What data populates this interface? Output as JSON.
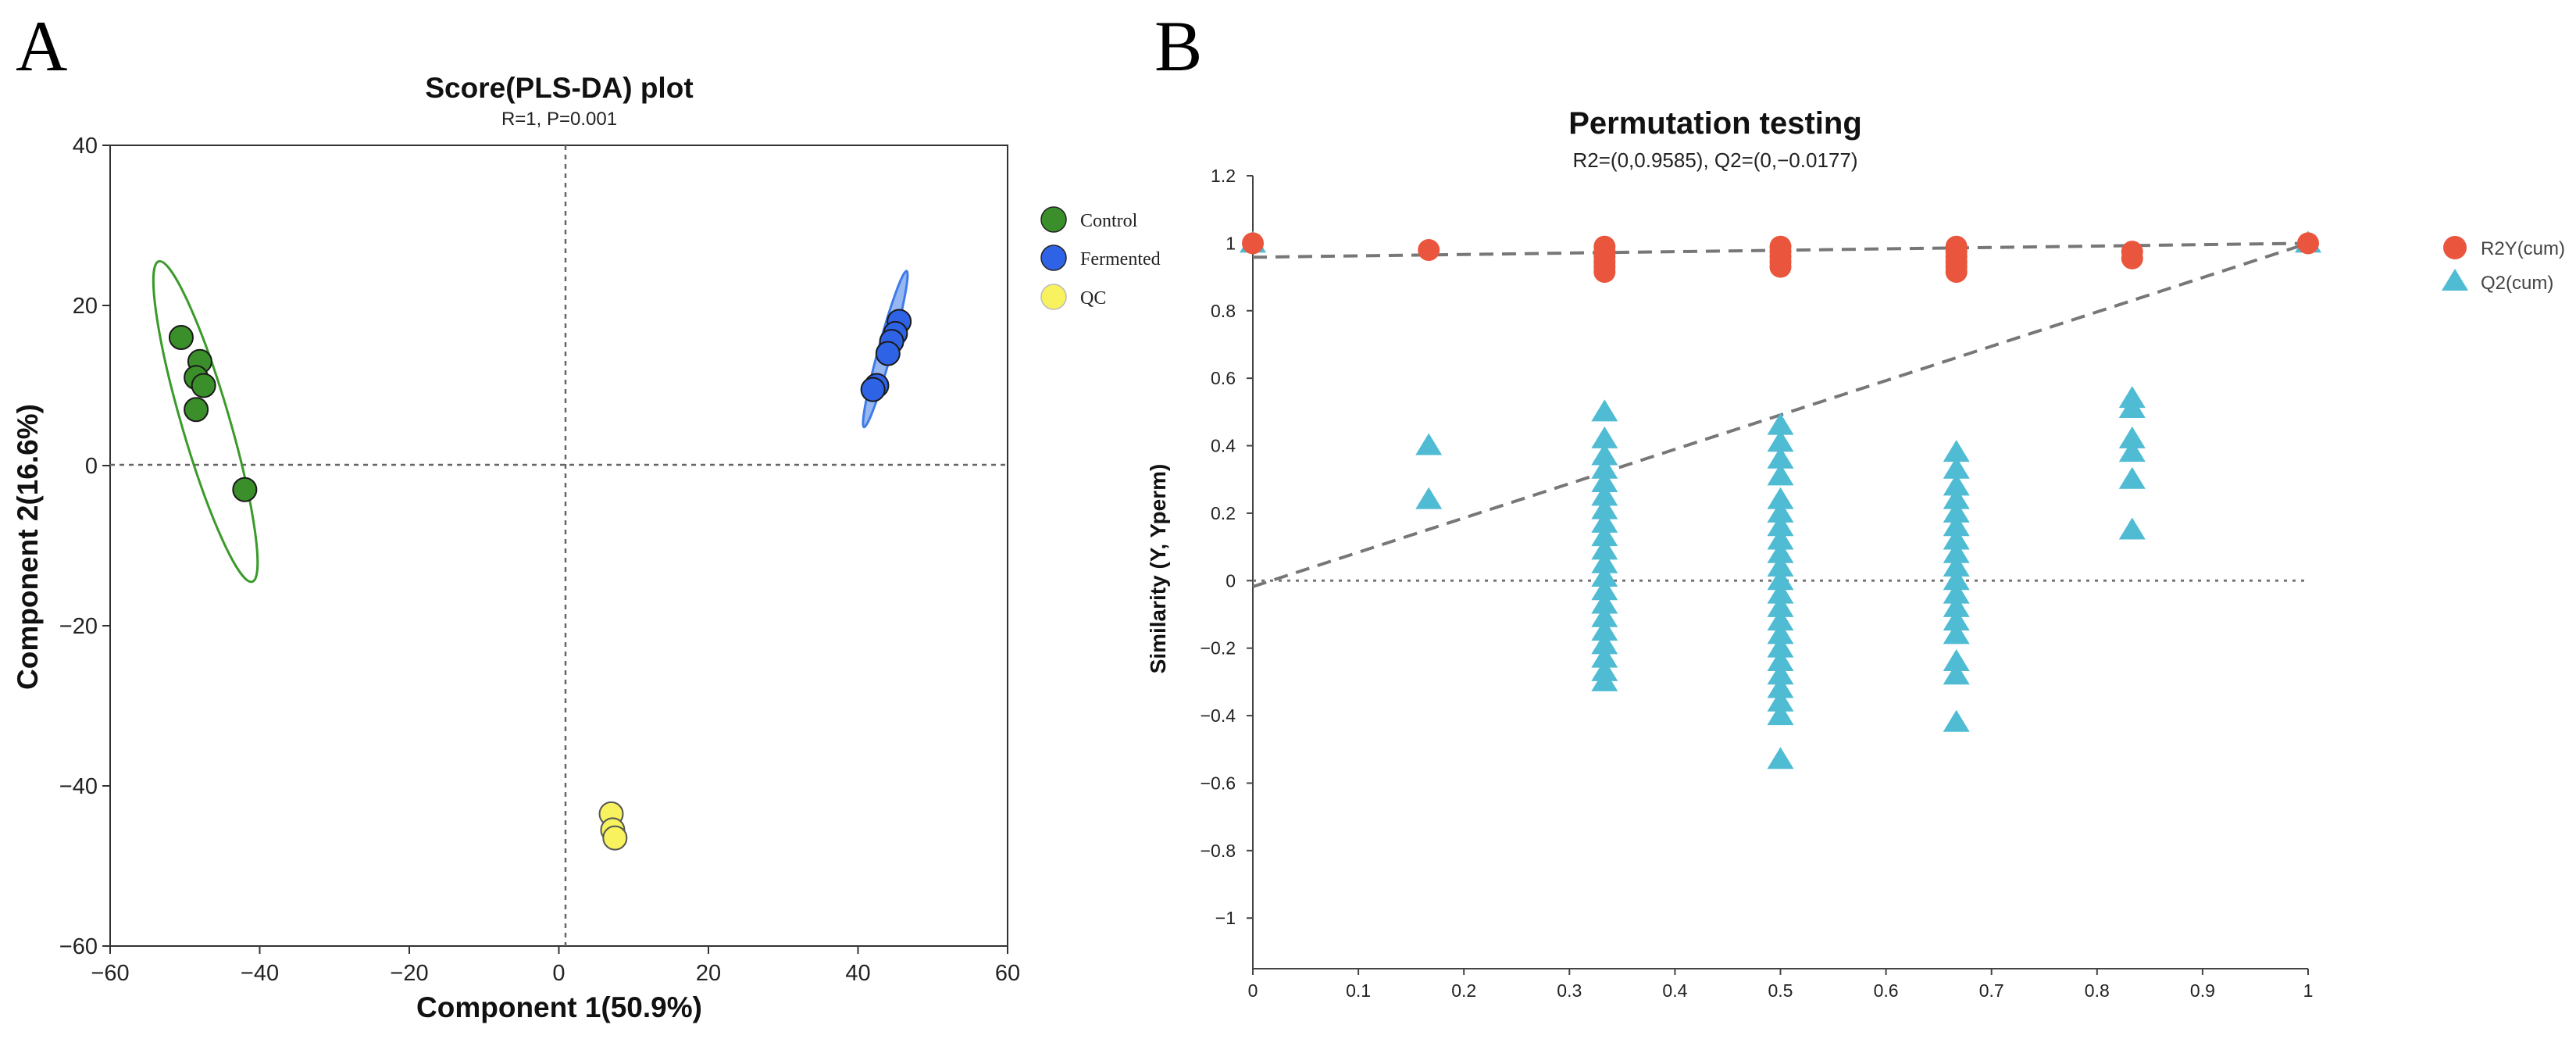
{
  "panel_a_letter": "A",
  "panel_b_letter": "B",
  "colors": {
    "control": "#3a8f2a",
    "fermented": "#2f63e6",
    "qc": "#f7f25e",
    "r2y": "#e9553d",
    "q2": "#4fbcd4",
    "ellipse_control": "#3a9a2a",
    "ellipse_fermented": "#3f7be8"
  },
  "chart_data": [
    {
      "id": "A",
      "type": "scatter",
      "title": "Score(PLS-DA) plot",
      "subtitle": "R=1, P=0.001",
      "xlabel": "Component 1(50.9%)",
      "ylabel": "Component 2(16.6%)",
      "xlim": [
        -60,
        60
      ],
      "ylim": [
        -60,
        40
      ],
      "xticks": [
        -60,
        -40,
        -20,
        0,
        20,
        40,
        60
      ],
      "xtick_labels": [
        "−60",
        "−40",
        "−20",
        "0",
        "20",
        "40",
        "60"
      ],
      "yticks": [
        -60,
        -40,
        -20,
        0,
        20,
        40
      ],
      "ytick_labels": [
        "−60",
        "−40",
        "−20",
        "0",
        "20",
        "40"
      ],
      "series": [
        {
          "name": "Control",
          "color_key": "control",
          "points": [
            [
              -50.5,
              16
            ],
            [
              -48,
              13
            ],
            [
              -48.5,
              11
            ],
            [
              -47.5,
              10
            ],
            [
              -48.5,
              7
            ],
            [
              -42,
              -3
            ]
          ]
        },
        {
          "name": "Fermented",
          "color_key": "fermented",
          "points": [
            [
              45.5,
              18
            ],
            [
              45,
              16.5
            ],
            [
              44.5,
              15.5
            ],
            [
              44,
              14
            ],
            [
              42.5,
              10
            ],
            [
              42,
              9.5
            ]
          ]
        },
        {
          "name": "QC",
          "color_key": "qc",
          "points": [
            [
              7,
              -43.5
            ],
            [
              7.2,
              -45.5
            ],
            [
              7.5,
              -46.5
            ]
          ]
        }
      ],
      "ellipses": [
        {
          "group": "Control",
          "color_key": "ellipse_control",
          "center": [
            -47.3,
            6.4
          ],
          "endpoints": [
            [
              -53.5,
              25.5
            ],
            [
              -41,
              -14.5
            ]
          ],
          "half_width": 3.2
        },
        {
          "group": "Fermented",
          "color_key": "ellipse_fermented",
          "center": [
            43.7,
            14.3
          ],
          "endpoints": [
            [
              40.8,
              4.8
            ],
            [
              46.5,
              24.3
            ]
          ],
          "half_width": 0.9
        }
      ]
    },
    {
      "id": "B",
      "type": "scatter",
      "title": "Permutation testing",
      "subtitle": "R2=(0,0.9585), Q2=(0,−0.0177)",
      "xlabel": "",
      "ylabel": "Similarity (Y, Yperm)",
      "xlim": [
        0,
        1
      ],
      "ylim": [
        -1.15,
        1.2
      ],
      "xticks": [
        0,
        0.1,
        0.2,
        0.3,
        0.4,
        0.5,
        0.6,
        0.7,
        0.8,
        0.9,
        1
      ],
      "xtick_labels": [
        "0",
        "0.1",
        "0.2",
        "0.3",
        "0.4",
        "0.5",
        "0.6",
        "0.7",
        "0.8",
        "0.9",
        "1"
      ],
      "yticks": [
        1.2,
        1,
        0.8,
        0.6,
        0.4,
        0.2,
        0,
        -0.2,
        -0.4,
        -0.6,
        -0.8,
        -1
      ],
      "ytick_labels": [
        "1.2",
        "1",
        "0.8",
        "0.6",
        "0.4",
        "0.2",
        "0",
        "−0.2",
        "−0.4",
        "−0.6",
        "−0.8",
        "−1"
      ],
      "lines": [
        {
          "name": "R2Y regression",
          "from": [
            0,
            0.9585
          ],
          "to": [
            1,
            1.0
          ]
        },
        {
          "name": "Q2 regression",
          "from": [
            0,
            -0.0177
          ],
          "to": [
            1,
            1.0
          ]
        }
      ],
      "series": [
        {
          "name": "R2Y(cum)",
          "color_key": "r2y",
          "marker": "circle",
          "points": [
            [
              0,
              1.0
            ],
            [
              0.1667,
              0.98
            ],
            [
              0.3333,
              0.99
            ],
            [
              0.3333,
              0.975
            ],
            [
              0.3333,
              0.96
            ],
            [
              0.3333,
              0.945
            ],
            [
              0.3333,
              0.93
            ],
            [
              0.3333,
              0.915
            ],
            [
              0.5,
              0.99
            ],
            [
              0.5,
              0.975
            ],
            [
              0.5,
              0.96
            ],
            [
              0.5,
              0.945
            ],
            [
              0.5,
              0.93
            ],
            [
              0.6667,
              0.99
            ],
            [
              0.6667,
              0.975
            ],
            [
              0.6667,
              0.96
            ],
            [
              0.6667,
              0.945
            ],
            [
              0.6667,
              0.93
            ],
            [
              0.6667,
              0.915
            ],
            [
              0.8333,
              0.975
            ],
            [
              0.8333,
              0.955
            ],
            [
              1,
              1.0
            ]
          ]
        },
        {
          "name": "Q2(cum)",
          "color_key": "q2",
          "marker": "triangle",
          "points": [
            [
              0,
              1.0
            ],
            [
              0.1667,
              0.4
            ],
            [
              0.1667,
              0.24
            ],
            [
              0.3333,
              0.5
            ],
            [
              0.3333,
              0.42
            ],
            [
              0.3333,
              0.37
            ],
            [
              0.3333,
              0.33
            ],
            [
              0.3333,
              0.29
            ],
            [
              0.3333,
              0.25
            ],
            [
              0.3333,
              0.21
            ],
            [
              0.3333,
              0.17
            ],
            [
              0.3333,
              0.13
            ],
            [
              0.3333,
              0.09
            ],
            [
              0.3333,
              0.05
            ],
            [
              0.3333,
              0.01
            ],
            [
              0.3333,
              -0.03
            ],
            [
              0.3333,
              -0.07
            ],
            [
              0.3333,
              -0.11
            ],
            [
              0.3333,
              -0.15
            ],
            [
              0.3333,
              -0.19
            ],
            [
              0.3333,
              -0.23
            ],
            [
              0.3333,
              -0.27
            ],
            [
              0.3333,
              -0.3
            ],
            [
              0.5,
              0.46
            ],
            [
              0.5,
              0.41
            ],
            [
              0.5,
              0.36
            ],
            [
              0.5,
              0.31
            ],
            [
              0.5,
              0.24
            ],
            [
              0.5,
              0.2
            ],
            [
              0.5,
              0.16
            ],
            [
              0.5,
              0.12
            ],
            [
              0.5,
              0.08
            ],
            [
              0.5,
              0.04
            ],
            [
              0.5,
              0.0
            ],
            [
              0.5,
              -0.04
            ],
            [
              0.5,
              -0.08
            ],
            [
              0.5,
              -0.12
            ],
            [
              0.5,
              -0.16
            ],
            [
              0.5,
              -0.2
            ],
            [
              0.5,
              -0.24
            ],
            [
              0.5,
              -0.28
            ],
            [
              0.5,
              -0.32
            ],
            [
              0.5,
              -0.36
            ],
            [
              0.5,
              -0.4
            ],
            [
              0.5,
              -0.53
            ],
            [
              0.6667,
              0.38
            ],
            [
              0.6667,
              0.33
            ],
            [
              0.6667,
              0.28
            ],
            [
              0.6667,
              0.24
            ],
            [
              0.6667,
              0.2
            ],
            [
              0.6667,
              0.16
            ],
            [
              0.6667,
              0.12
            ],
            [
              0.6667,
              0.08
            ],
            [
              0.6667,
              0.04
            ],
            [
              0.6667,
              0.0
            ],
            [
              0.6667,
              -0.04
            ],
            [
              0.6667,
              -0.08
            ],
            [
              0.6667,
              -0.12
            ],
            [
              0.6667,
              -0.16
            ],
            [
              0.6667,
              -0.24
            ],
            [
              0.6667,
              -0.28
            ],
            [
              0.6667,
              -0.42
            ],
            [
              0.8333,
              0.54
            ],
            [
              0.8333,
              0.51
            ],
            [
              0.8333,
              0.42
            ],
            [
              0.8333,
              0.38
            ],
            [
              0.8333,
              0.3
            ],
            [
              0.8333,
              0.15
            ],
            [
              1,
              1.0
            ]
          ]
        }
      ]
    }
  ]
}
